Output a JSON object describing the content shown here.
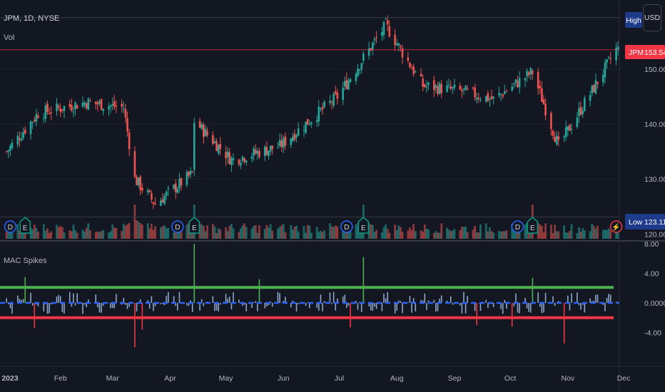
{
  "header": {
    "symbol_title": "JPM, 1D, NYSE",
    "volume_label": "Vol",
    "currency_button": "USD"
  },
  "price_tags": {
    "high_label": "High",
    "last_symbol": "JPM",
    "last_value": "153.54",
    "low_label": "Low",
    "low_value": "123.11"
  },
  "colors": {
    "background": "#131722",
    "up": "#26a69a",
    "down": "#ef5350",
    "mac_upper": "#4caf50",
    "mac_lower": "#f23645",
    "mac_zero": "#2962ff",
    "last_price_tag": "#f23645",
    "high_low_tag": "#1e3a8a"
  },
  "event_markers": [
    {
      "type": "dividend",
      "label": "D",
      "color": "#2962ff"
    },
    {
      "type": "earnings",
      "label": "E",
      "color": "#089981"
    },
    {
      "type": "dividend",
      "label": "D",
      "color": "#2962ff"
    },
    {
      "type": "earnings",
      "label": "E",
      "color": "#089981"
    },
    {
      "type": "dividend",
      "label": "D",
      "color": "#2962ff"
    },
    {
      "type": "earnings",
      "label": "E",
      "color": "#089981"
    },
    {
      "type": "dividend",
      "label": "D",
      "color": "#2962ff"
    },
    {
      "type": "earnings",
      "label": "E",
      "color": "#089981"
    },
    {
      "type": "split-bolt",
      "label": "⚡",
      "color": "#f23645"
    }
  ],
  "chart_data": [
    {
      "type": "candlestick",
      "title": "JPM, 1D, NYSE",
      "x_ticks": [
        "2023",
        "Feb",
        "Mar",
        "Apr",
        "May",
        "Jun",
        "Jul",
        "Aug",
        "Sep",
        "Oct",
        "Nov",
        "Dec"
      ],
      "y_ticks": [
        "150.00",
        "140.00",
        "130.00",
        "120.00"
      ],
      "ylim": [
        119,
        160
      ],
      "high_value": 159.4,
      "last_value": 153.54,
      "low_value": 123.11,
      "key_points": [
        {
          "date": "2023-01-03",
          "close": 135.0
        },
        {
          "date": "2023-01-20",
          "close": 142.0
        },
        {
          "date": "2023-02-15",
          "close": 144.0
        },
        {
          "date": "2023-03-07",
          "close": 143.0
        },
        {
          "date": "2023-03-13",
          "close": 130.0
        },
        {
          "date": "2023-03-24",
          "close": 125.5
        },
        {
          "date": "2023-04-13",
          "close": 131.0
        },
        {
          "date": "2023-04-14",
          "close": 140.5
        },
        {
          "date": "2023-05-04",
          "close": 133.5
        },
        {
          "date": "2023-05-30",
          "close": 136.0
        },
        {
          "date": "2023-06-30",
          "close": 145.0
        },
        {
          "date": "2023-07-26",
          "close": 158.0
        },
        {
          "date": "2023-08-15",
          "close": 147.0
        },
        {
          "date": "2023-09-05",
          "close": 146.0
        },
        {
          "date": "2023-09-22",
          "close": 144.5
        },
        {
          "date": "2023-10-13",
          "close": 149.5
        },
        {
          "date": "2023-10-27",
          "close": 136.0
        },
        {
          "date": "2023-11-13",
          "close": 145.5
        },
        {
          "date": "2023-11-27",
          "close": 153.54
        }
      ]
    },
    {
      "type": "bar",
      "title": "Vol",
      "volume_spike_dates": [
        "2023-03-13",
        "2023-04-14",
        "2023-07-14",
        "2023-10-13"
      ]
    },
    {
      "type": "bar",
      "title": "MAC Spikes",
      "y_ticks": [
        "8.00",
        "4.00",
        "0.0000",
        "-4.00"
      ],
      "ylim": [
        -8,
        8
      ],
      "upper_band": 2.1,
      "lower_band": -2.0,
      "zero_line": 0
    }
  ]
}
